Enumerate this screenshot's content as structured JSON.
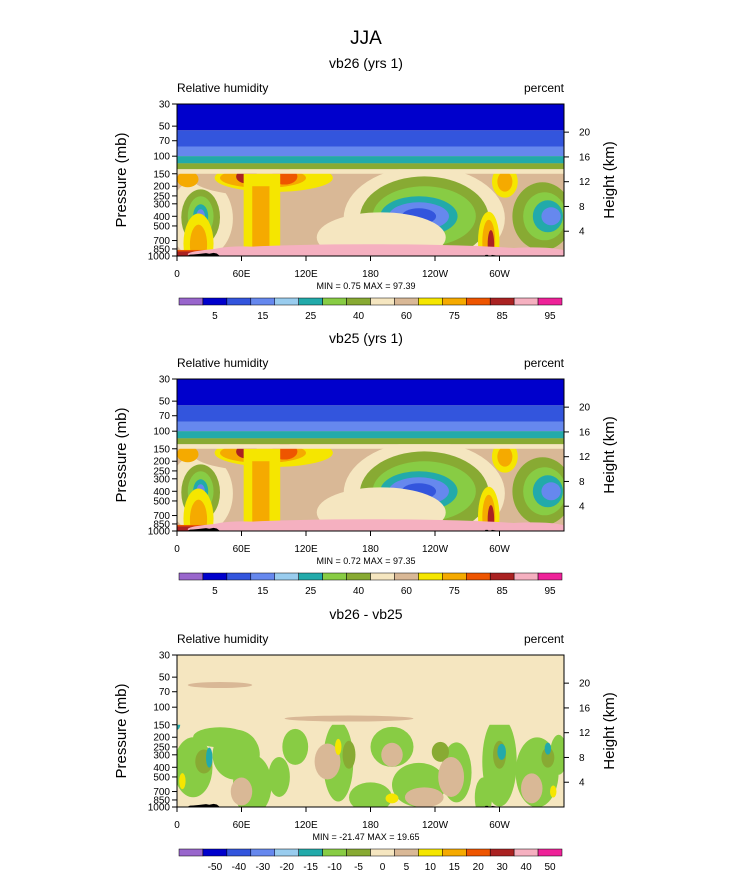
{
  "main_title": "JJA",
  "chart_data": [
    {
      "type": "heatmap",
      "title": "vb26 (yrs 1)",
      "left_label": "Relative humidity",
      "right_label": "percent",
      "ylabel": "Pressure (mb)",
      "ylabel_right": "Height (km)",
      "x_ticks": [
        "0",
        "60E",
        "120E",
        "180",
        "120W",
        "60W"
      ],
      "y_ticks": [
        "30",
        "50",
        "70",
        "100",
        "150",
        "200",
        "250",
        "300",
        "400",
        "500",
        "700",
        "850",
        "1000"
      ],
      "y_ticks_right": [
        "20",
        "16",
        "12",
        "8",
        "4"
      ],
      "min": 0.75,
      "max": 97.39,
      "min_max_label": "MIN =  0.75  MAX = 97.39",
      "colorbar": {
        "colors": [
          "#9966cc",
          "#0000cc",
          "#3355dd",
          "#6688ee",
          "#99ccee",
          "#22aaaa",
          "#88cc44",
          "#88aa33",
          "#f5e6c0",
          "#d9b896",
          "#f5e600",
          "#f5aa00",
          "#ee5500",
          "#aa2222",
          "#f5b0c0",
          "#ee2299"
        ],
        "labels": [
          "",
          "5",
          "",
          "15",
          "",
          "25",
          "",
          "40",
          "",
          "60",
          "",
          "75",
          "",
          "85",
          "",
          "95"
        ]
      }
    },
    {
      "type": "heatmap",
      "title": "vb25 (yrs 1)",
      "left_label": "Relative humidity",
      "right_label": "percent",
      "ylabel": "Pressure (mb)",
      "ylabel_right": "Height (km)",
      "x_ticks": [
        "0",
        "60E",
        "120E",
        "180",
        "120W",
        "60W"
      ],
      "y_ticks": [
        "30",
        "50",
        "70",
        "100",
        "150",
        "200",
        "250",
        "300",
        "400",
        "500",
        "700",
        "850",
        "1000"
      ],
      "y_ticks_right": [
        "20",
        "16",
        "12",
        "8",
        "4"
      ],
      "min": 0.72,
      "max": 97.35,
      "min_max_label": "MIN =  0.72  MAX = 97.35",
      "colorbar": {
        "colors": [
          "#9966cc",
          "#0000cc",
          "#3355dd",
          "#6688ee",
          "#99ccee",
          "#22aaaa",
          "#88cc44",
          "#88aa33",
          "#f5e6c0",
          "#d9b896",
          "#f5e600",
          "#f5aa00",
          "#ee5500",
          "#aa2222",
          "#f5b0c0",
          "#ee2299"
        ],
        "labels": [
          "",
          "5",
          "",
          "15",
          "",
          "25",
          "",
          "40",
          "",
          "60",
          "",
          "75",
          "",
          "85",
          "",
          "95"
        ]
      }
    },
    {
      "type": "heatmap",
      "title": "vb26 - vb25",
      "left_label": "Relative humidity",
      "right_label": "percent",
      "ylabel": "Pressure (mb)",
      "ylabel_right": "Height (km)",
      "x_ticks": [
        "0",
        "60E",
        "120E",
        "180",
        "120W",
        "60W"
      ],
      "y_ticks": [
        "30",
        "50",
        "70",
        "100",
        "150",
        "200",
        "250",
        "300",
        "400",
        "500",
        "700",
        "850",
        "1000"
      ],
      "y_ticks_right": [
        "20",
        "16",
        "12",
        "8",
        "4"
      ],
      "min": -21.47,
      "max": 19.65,
      "min_max_label": "MIN = -21.47  MAX = 19.65",
      "colorbar": {
        "colors": [
          "#9966cc",
          "#0000cc",
          "#3355dd",
          "#6688ee",
          "#99ccee",
          "#22aaaa",
          "#88cc44",
          "#88aa33",
          "#f5e6c0",
          "#d9b896",
          "#f5e600",
          "#f5aa00",
          "#ee5500",
          "#aa2222",
          "#f5b0c0",
          "#ee2299"
        ],
        "labels": [
          "",
          "-50",
          "-40",
          "-30",
          "-20",
          "-15",
          "-10",
          "-5",
          "0",
          "5",
          "10",
          "15",
          "20",
          "30",
          "40",
          "50"
        ]
      }
    }
  ]
}
